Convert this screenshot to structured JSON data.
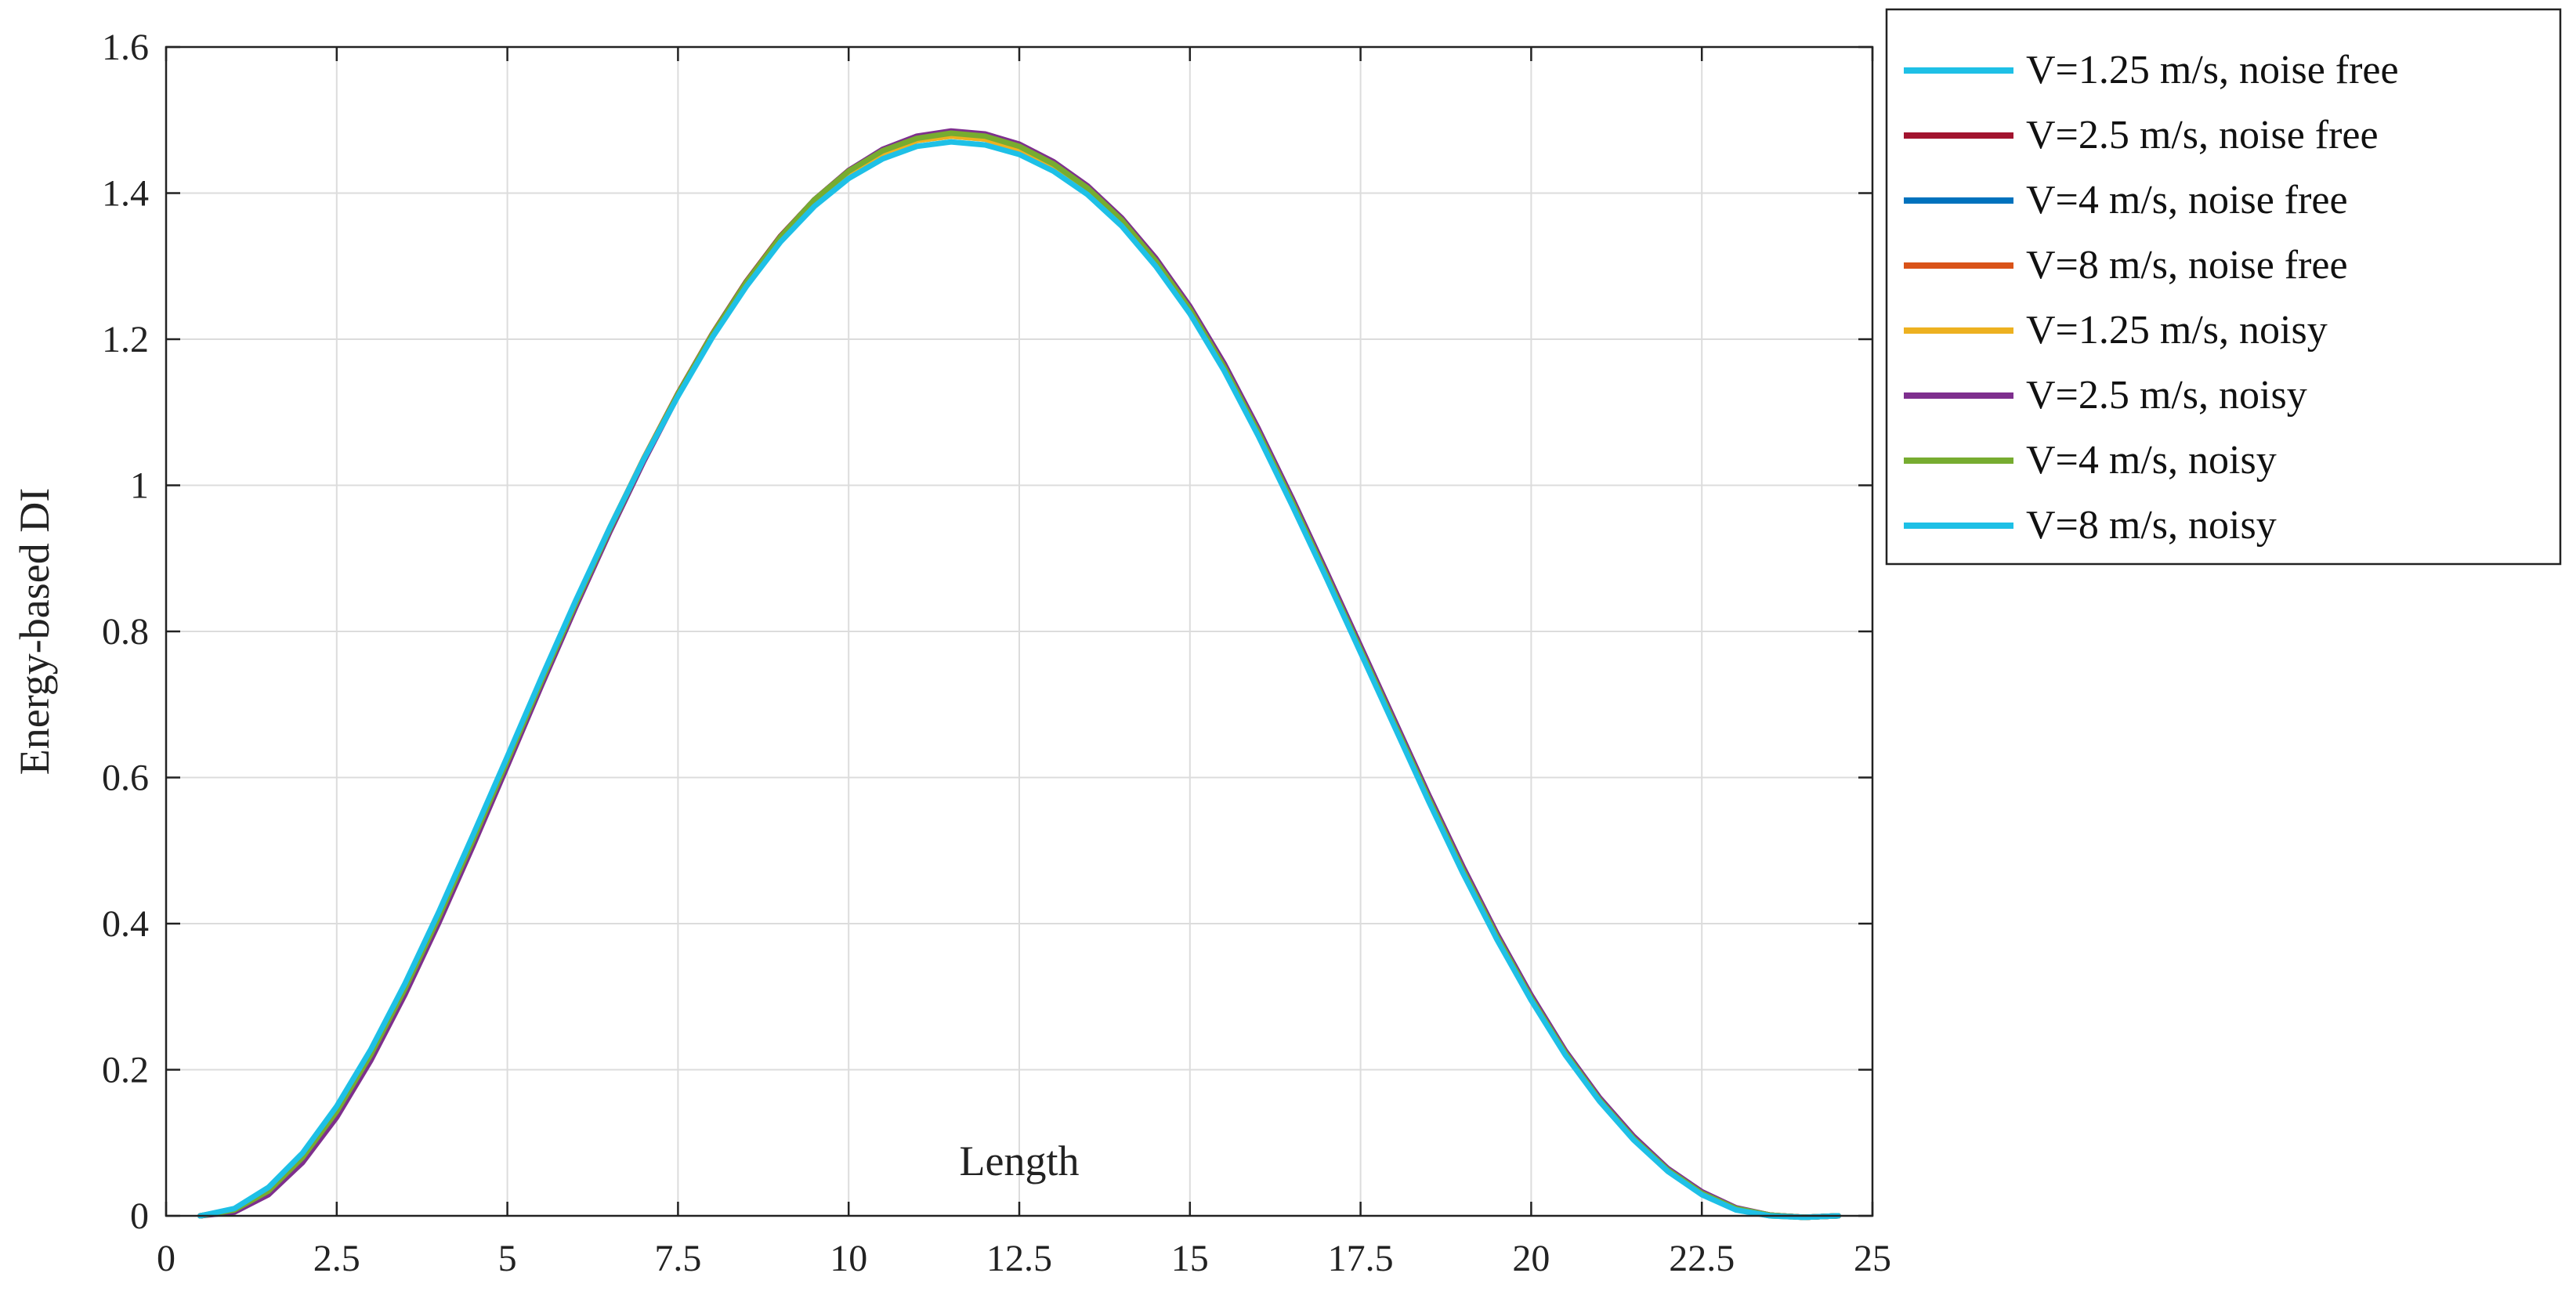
{
  "chart_data": {
    "type": "line",
    "title": "",
    "xlabel": "Length",
    "ylabel": "Energy-based DI",
    "xlim": [
      0,
      25
    ],
    "ylim": [
      0,
      1.6
    ],
    "x_ticks": [
      "0",
      "2.5",
      "5",
      "7.5",
      "10",
      "12.5",
      "15",
      "17.5",
      "20",
      "22.5",
      "25"
    ],
    "y_ticks": [
      "0",
      "0.2",
      "0.4",
      "0.6",
      "0.8",
      "1",
      "1.2",
      "1.4",
      "1.6"
    ],
    "x_tick_values": [
      0,
      2.5,
      5,
      7.5,
      10,
      12.5,
      15,
      17.5,
      20,
      22.5,
      25
    ],
    "y_tick_values": [
      0,
      0.2,
      0.4,
      0.6,
      0.8,
      1,
      1.2,
      1.4,
      1.6
    ],
    "grid": true,
    "legend_position": "outside-top-right",
    "x": [
      0.5,
      1.0,
      1.5,
      2.0,
      2.5,
      3.0,
      3.5,
      4.0,
      4.5,
      5.0,
      5.5,
      6.0,
      6.5,
      7.0,
      7.5,
      8.0,
      8.5,
      9.0,
      9.5,
      10.0,
      10.5,
      11.0,
      11.5,
      12.0,
      12.5,
      13.0,
      13.5,
      14.0,
      14.5,
      15.0,
      15.5,
      16.0,
      16.5,
      17.0,
      17.5,
      18.0,
      18.5,
      19.0,
      19.5,
      20.0,
      20.5,
      21.0,
      21.5,
      22.0,
      22.5,
      23.0,
      23.5,
      24.0,
      24.5
    ],
    "series": [
      {
        "name": "V=1.25 m/s, noise free",
        "color": "#1ec0e6",
        "values": [
          0.0,
          0.009,
          0.037,
          0.084,
          0.147,
          0.225,
          0.315,
          0.414,
          0.519,
          0.627,
          0.735,
          0.841,
          0.942,
          1.037,
          1.125,
          1.206,
          1.277,
          1.339,
          1.389,
          1.427,
          1.455,
          1.472,
          1.478,
          1.474,
          1.46,
          1.436,
          1.403,
          1.359,
          1.303,
          1.237,
          1.158,
          1.069,
          0.973,
          0.874,
          0.772,
          0.67,
          0.568,
          0.47,
          0.379,
          0.296,
          0.221,
          0.158,
          0.105,
          0.062,
          0.03,
          0.009,
          0.0,
          -0.002,
          0.0
        ]
      },
      {
        "name": "V=2.5 m/s, noise free",
        "color": "#a2142f",
        "values": [
          0.0,
          0.008,
          0.035,
          0.081,
          0.144,
          0.222,
          0.312,
          0.411,
          0.516,
          0.624,
          0.733,
          0.839,
          0.941,
          1.037,
          1.126,
          1.207,
          1.279,
          1.341,
          1.391,
          1.43,
          1.458,
          1.475,
          1.481,
          1.477,
          1.463,
          1.439,
          1.406,
          1.362,
          1.306,
          1.24,
          1.161,
          1.072,
          0.976,
          0.876,
          0.774,
          0.672,
          0.57,
          0.472,
          0.381,
          0.297,
          0.222,
          0.159,
          0.106,
          0.063,
          0.031,
          0.01,
          0.001,
          -0.002,
          0.0
        ]
      },
      {
        "name": "V=4 m/s, noise free",
        "color": "#0072bd",
        "values": [
          0.0,
          0.008,
          0.034,
          0.08,
          0.143,
          0.221,
          0.311,
          0.41,
          0.515,
          0.623,
          0.732,
          0.838,
          0.94,
          1.036,
          1.125,
          1.206,
          1.278,
          1.34,
          1.391,
          1.43,
          1.458,
          1.475,
          1.482,
          1.478,
          1.464,
          1.44,
          1.407,
          1.363,
          1.307,
          1.241,
          1.162,
          1.073,
          0.977,
          0.877,
          0.775,
          0.673,
          0.571,
          0.473,
          0.382,
          0.298,
          0.223,
          0.159,
          0.106,
          0.063,
          0.031,
          0.01,
          0.001,
          -0.002,
          0.0
        ]
      },
      {
        "name": "V=8 m/s, noise free",
        "color": "#d95319",
        "values": [
          0.0,
          0.007,
          0.033,
          0.078,
          0.141,
          0.219,
          0.309,
          0.408,
          0.513,
          0.621,
          0.73,
          0.836,
          0.938,
          1.034,
          1.124,
          1.205,
          1.278,
          1.34,
          1.391,
          1.431,
          1.459,
          1.476,
          1.483,
          1.479,
          1.465,
          1.441,
          1.408,
          1.364,
          1.309,
          1.243,
          1.164,
          1.075,
          0.979,
          0.879,
          0.777,
          0.675,
          0.573,
          0.475,
          0.383,
          0.299,
          0.224,
          0.16,
          0.107,
          0.064,
          0.032,
          0.01,
          0.001,
          -0.002,
          0.0
        ]
      },
      {
        "name": "V=1.25 m/s, noisy",
        "color": "#edb120",
        "values": [
          0.0,
          0.009,
          0.037,
          0.084,
          0.147,
          0.225,
          0.315,
          0.414,
          0.519,
          0.627,
          0.735,
          0.841,
          0.942,
          1.037,
          1.125,
          1.206,
          1.277,
          1.339,
          1.389,
          1.427,
          1.455,
          1.472,
          1.478,
          1.474,
          1.46,
          1.436,
          1.403,
          1.359,
          1.303,
          1.237,
          1.158,
          1.069,
          0.973,
          0.874,
          0.772,
          0.67,
          0.568,
          0.47,
          0.379,
          0.296,
          0.221,
          0.158,
          0.105,
          0.062,
          0.03,
          0.009,
          0.0,
          -0.002,
          0.0
        ]
      },
      {
        "name": "V=2.5 m/s, noisy",
        "color": "#7e2f8e",
        "values": [
          0.0,
          0.005,
          0.029,
          0.073,
          0.135,
          0.213,
          0.303,
          0.402,
          0.507,
          0.616,
          0.726,
          0.833,
          0.936,
          1.033,
          1.123,
          1.205,
          1.278,
          1.34,
          1.391,
          1.431,
          1.46,
          1.478,
          1.485,
          1.481,
          1.467,
          1.443,
          1.41,
          1.366,
          1.311,
          1.245,
          1.167,
          1.078,
          0.982,
          0.882,
          0.78,
          0.678,
          0.576,
          0.478,
          0.386,
          0.302,
          0.226,
          0.162,
          0.109,
          0.065,
          0.033,
          0.011,
          0.001,
          -0.002,
          0.0
        ]
      },
      {
        "name": "V=4 m/s, noisy",
        "color": "#77ac30",
        "values": [
          0.0,
          0.008,
          0.034,
          0.08,
          0.143,
          0.221,
          0.311,
          0.41,
          0.515,
          0.623,
          0.732,
          0.838,
          0.94,
          1.036,
          1.125,
          1.206,
          1.278,
          1.34,
          1.391,
          1.43,
          1.458,
          1.475,
          1.482,
          1.478,
          1.464,
          1.44,
          1.407,
          1.363,
          1.307,
          1.241,
          1.162,
          1.073,
          0.977,
          0.877,
          0.775,
          0.673,
          0.571,
          0.473,
          0.382,
          0.298,
          0.223,
          0.159,
          0.106,
          0.063,
          0.031,
          0.01,
          0.001,
          -0.002,
          0.0
        ]
      },
      {
        "name": "V=8 m/s, noisy",
        "color": "#1ec0e6",
        "values": [
          0.0,
          0.01,
          0.039,
          0.086,
          0.15,
          0.228,
          0.318,
          0.417,
          0.522,
          0.629,
          0.737,
          0.842,
          0.942,
          1.036,
          1.122,
          1.202,
          1.272,
          1.333,
          1.382,
          1.42,
          1.447,
          1.464,
          1.47,
          1.466,
          1.453,
          1.43,
          1.398,
          1.355,
          1.3,
          1.235,
          1.157,
          1.068,
          0.972,
          0.873,
          0.771,
          0.669,
          0.567,
          0.469,
          0.378,
          0.295,
          0.22,
          0.157,
          0.104,
          0.061,
          0.029,
          0.008,
          0.0,
          -0.002,
          0.0
        ]
      }
    ]
  }
}
